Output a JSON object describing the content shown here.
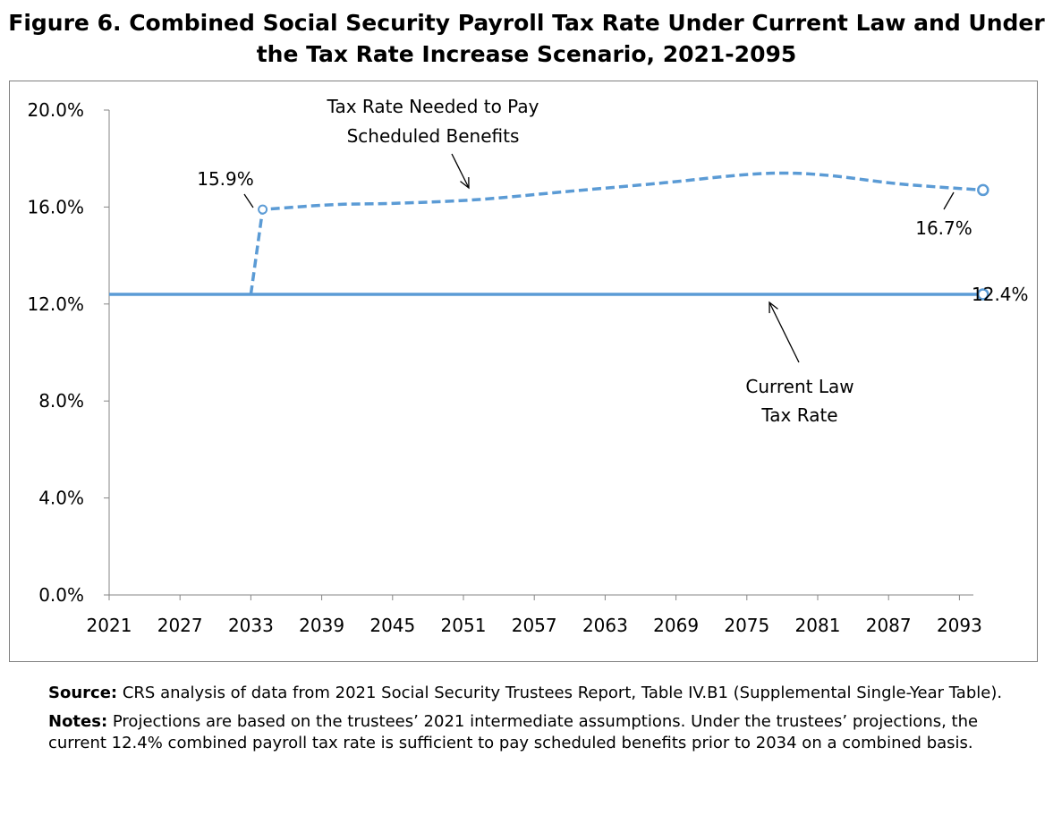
{
  "title_line1": "Figure 6. Combined Social Security Payroll Tax Rate Under Current Law and Under",
  "title_line2": "the Tax Rate Increase Scenario, 2021-2095",
  "chart_data": {
    "type": "line",
    "title": "Figure 6. Combined Social Security Payroll Tax Rate Under Current Law and Under the Tax Rate Increase Scenario, 2021-2095",
    "x_ticks": [
      "2021",
      "2027",
      "2033",
      "2039",
      "2045",
      "2051",
      "2057",
      "2063",
      "2069",
      "2075",
      "2081",
      "2087",
      "2093"
    ],
    "y_ticks": [
      "0.0%",
      "4.0%",
      "8.0%",
      "12.0%",
      "16.0%",
      "20.0%"
    ],
    "xlim": [
      2021,
      2095
    ],
    "ylim": [
      0,
      20
    ],
    "grid": false,
    "series": [
      {
        "name": "Current Law Tax Rate",
        "style": "solid",
        "color": "#5b9bd5",
        "x": [
          2021,
          2095
        ],
        "y": [
          12.4,
          12.4
        ]
      },
      {
        "name": "Tax Rate Needed to Pay Scheduled Benefits",
        "style": "dashed",
        "color": "#5b9bd5",
        "x": [
          2033,
          2034,
          2040,
          2045,
          2052,
          2060,
          2068,
          2074,
          2078,
          2082,
          2088,
          2095
        ],
        "y": [
          12.4,
          15.9,
          16.1,
          16.15,
          16.3,
          16.65,
          17.0,
          17.3,
          17.4,
          17.3,
          16.95,
          16.7
        ]
      }
    ],
    "annotations": {
      "needed_line1": "Tax Rate Needed to Pay",
      "needed_line2": "Scheduled Benefits",
      "current_line1": "Current Law",
      "current_line2": "Tax Rate",
      "label_start": "15.9%",
      "label_end_needed": "16.7%",
      "label_end_current": "12.4%"
    }
  },
  "notes": {
    "source_label": "Source:",
    "source_text": "CRS analysis of data from 2021 Social Security Trustees Report, Table IV.B1 (Supplemental Single-Year Table).",
    "notes_label": "Notes:",
    "notes_text": "Projections are based on the trustees’ 2021 intermediate assumptions. Under the trustees’ projections, the current 12.4% combined payroll tax rate is sufficient to pay scheduled benefits prior to 2034 on a combined basis."
  }
}
